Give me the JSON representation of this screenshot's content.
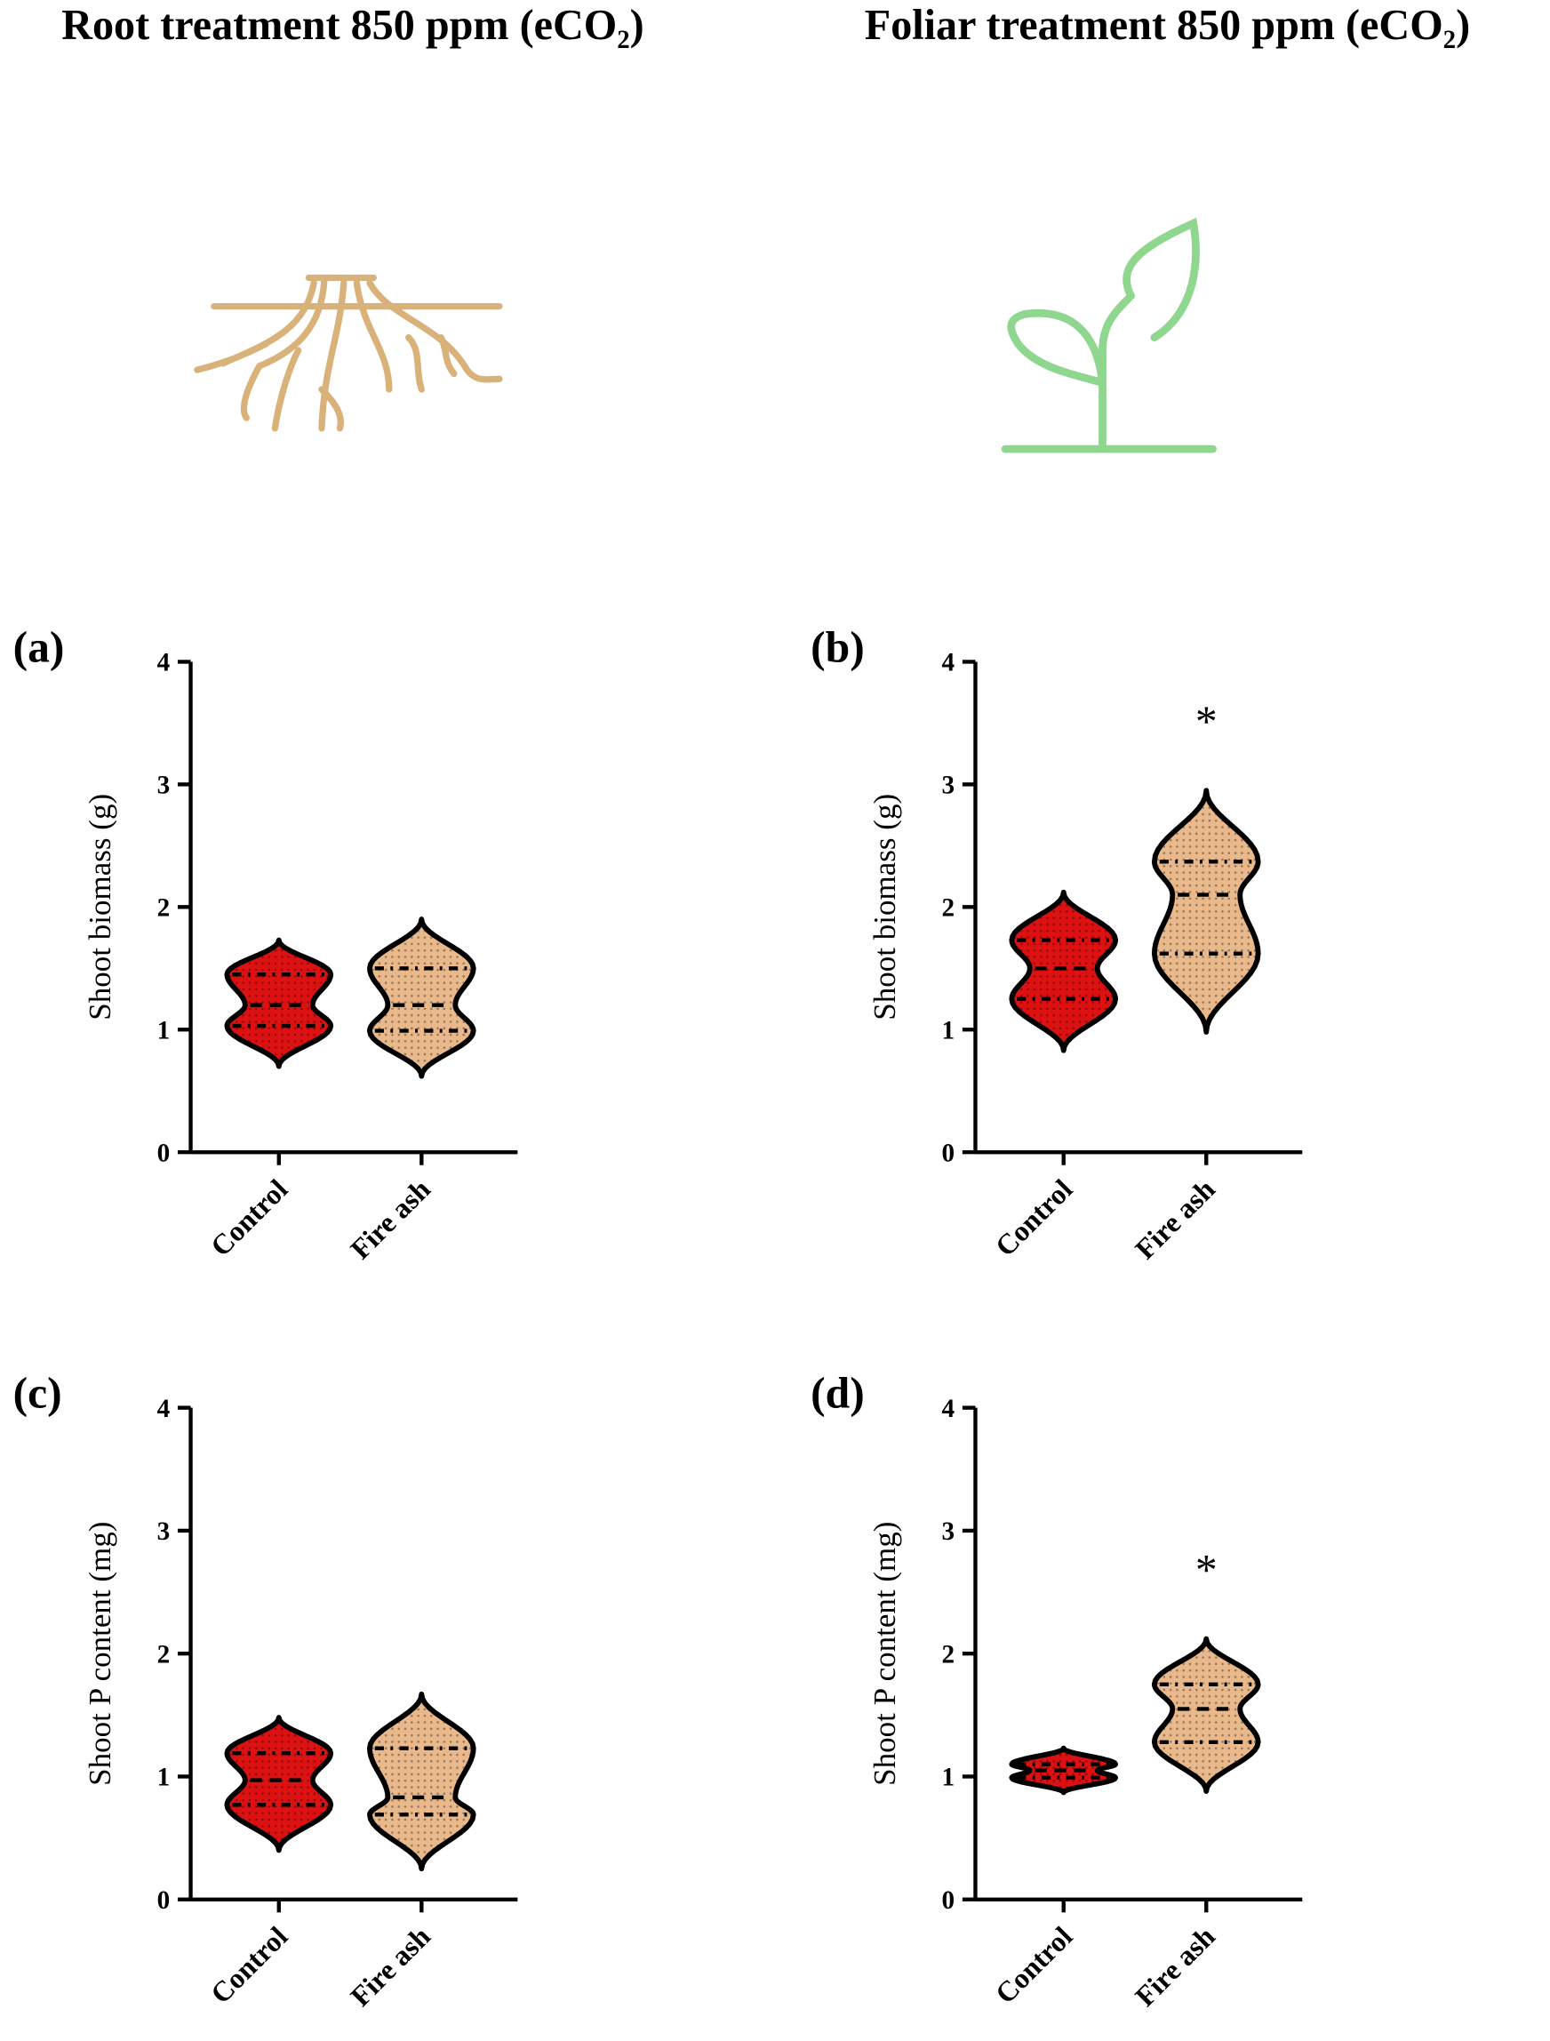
{
  "header": {
    "left": "Root treatment 850 ppm (eCO₂)",
    "right": "Foliar treatment 850 ppm (eCO₂)"
  },
  "chart_data": [
    {
      "type": "violin",
      "panel": "(a)",
      "ylabel": "Shoot biomass (g)",
      "ylim": [
        0,
        4
      ],
      "yticks": [
        0,
        1,
        2,
        3,
        4
      ],
      "violins": [
        {
          "name": "Control",
          "color": "#dd1111",
          "min": 0.7,
          "q1": 1.03,
          "median": 1.2,
          "q3": 1.45,
          "max": 1.73
        },
        {
          "name": "Fire ash",
          "color": "#e9b98c",
          "min": 0.62,
          "q1": 0.99,
          "median": 1.2,
          "q3": 1.5,
          "max": 1.9
        }
      ]
    },
    {
      "type": "violin",
      "panel": "(b)",
      "ylabel": "Shoot biomass (g)",
      "ylim": [
        0,
        4
      ],
      "yticks": [
        0,
        1,
        2,
        3,
        4
      ],
      "violins": [
        {
          "name": "Control",
          "color": "#dd1111",
          "min": 0.83,
          "q1": 1.25,
          "median": 1.5,
          "q3": 1.73,
          "max": 2.12
        },
        {
          "name": "Fire ash",
          "color": "#e9b98c",
          "min": 0.98,
          "q1": 1.62,
          "median": 2.1,
          "q3": 2.37,
          "max": 2.95,
          "annotation": "*"
        }
      ]
    },
    {
      "type": "violin",
      "panel": "(c)",
      "ylabel": "Shoot P content (mg)",
      "ylim": [
        0,
        4
      ],
      "yticks": [
        0,
        1,
        2,
        3,
        4
      ],
      "violins": [
        {
          "name": "Control",
          "color": "#dd1111",
          "min": 0.4,
          "q1": 0.77,
          "median": 0.97,
          "q3": 1.19,
          "max": 1.48
        },
        {
          "name": "Fire ash",
          "color": "#e9b98c",
          "min": 0.25,
          "q1": 0.69,
          "median": 0.83,
          "q3": 1.23,
          "max": 1.67
        }
      ]
    },
    {
      "type": "violin",
      "panel": "(d)",
      "ylabel": "Shoot P content (mg)",
      "ylim": [
        0,
        4
      ],
      "yticks": [
        0,
        1,
        2,
        3,
        4
      ],
      "violins": [
        {
          "name": "Control",
          "color": "#dd1111",
          "min": 0.87,
          "q1": 0.99,
          "median": 1.05,
          "q3": 1.1,
          "max": 1.23
        },
        {
          "name": "Fire ash",
          "color": "#e9b98c",
          "min": 0.88,
          "q1": 1.28,
          "median": 1.55,
          "q3": 1.75,
          "max": 2.12,
          "annotation": "*"
        }
      ]
    }
  ]
}
